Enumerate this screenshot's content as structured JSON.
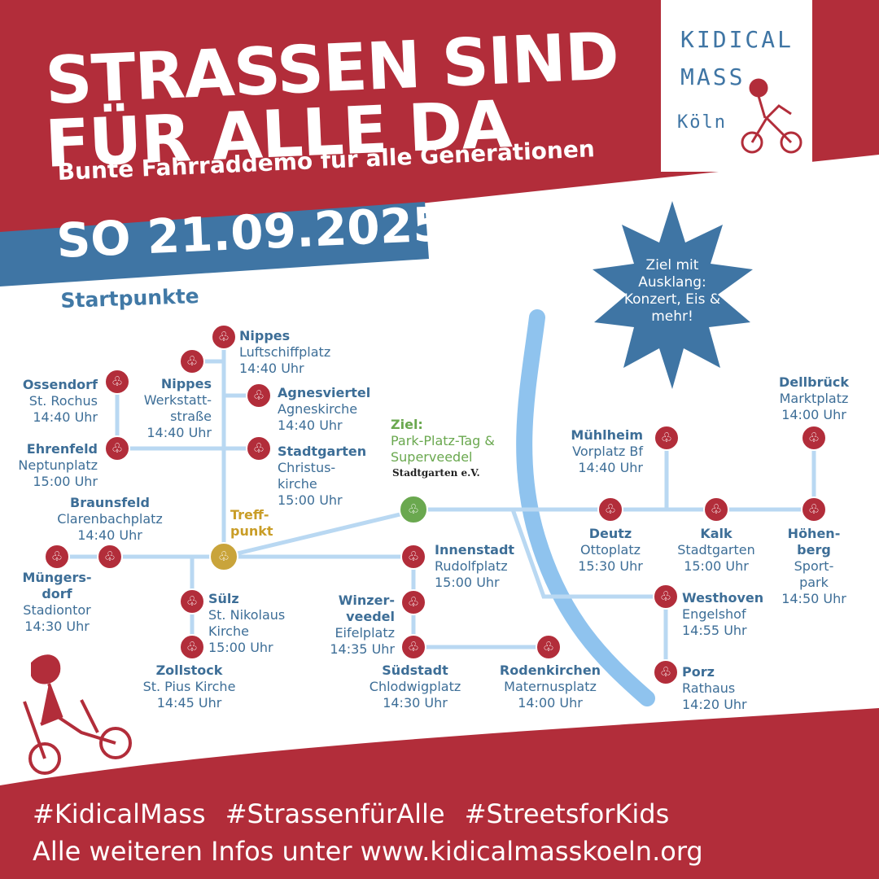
{
  "headline": {
    "line1": "STRASSEN SIND",
    "line2": "FÜR ALLE DA"
  },
  "subtitle": "Bunte Fahrraddemo für alle Generationen",
  "date": "SO 21.09.2025",
  "section_title": "Startpunkte",
  "logo": {
    "line1": "KIDICAL",
    "line2": "MASS",
    "line3": "Köln"
  },
  "burst": "Ziel mit Ausklang: Konzert, Eis & mehr!",
  "treffpunkt": {
    "line1": "Treff-",
    "line2": "punkt"
  },
  "ziel": {
    "name": "Ziel:",
    "line1": "Park-Platz-Tag &",
    "line2": "Superveedel",
    "partner": "Stadtgarten e.V."
  },
  "stations": {
    "nippes_luft": {
      "name": "Nippes",
      "place": "Luftschiffplatz",
      "time": "14:40 Uhr"
    },
    "nippes_werk": {
      "name": "Nippes",
      "place1": "Werkstatt-",
      "place2": "straße",
      "time": "14:40 Uhr"
    },
    "agnesviertel": {
      "name": "Agnesviertel",
      "place": "Agneskirche",
      "time": "14:40 Uhr"
    },
    "ossendorf": {
      "name": "Ossendorf",
      "place": "St. Rochus",
      "time": "14:40 Uhr"
    },
    "ehrenfeld": {
      "name": "Ehrenfeld",
      "place": "Neptunplatz",
      "time": "15:00 Uhr"
    },
    "stadtgarten": {
      "name": "Stadtgarten",
      "place1": "Christus-",
      "place2": "kirche",
      "time": "15:00 Uhr"
    },
    "braunsfeld": {
      "name": "Braunsfeld",
      "place": "Clarenbachplatz",
      "time": "14:40 Uhr"
    },
    "muengersdorf": {
      "name1": "Müngers-",
      "name2": "dorf",
      "place": "Stadiontor",
      "time": "14:30 Uhr"
    },
    "suelz": {
      "name": "Sülz",
      "place1": "St. Nikolaus",
      "place2": "Kirche",
      "time": "15:00 Uhr"
    },
    "zollstock": {
      "name": "Zollstock",
      "place": "St. Pius Kirche",
      "time": "14:45 Uhr"
    },
    "innenstadt": {
      "name": "Innenstadt",
      "place": "Rudolfplatz",
      "time": "15:00 Uhr"
    },
    "winzerveedel": {
      "name1": "Winzer-",
      "name2": "veedel",
      "place": "Eifelplatz",
      "time": "14:35 Uhr"
    },
    "suedstadt": {
      "name": "Südstadt",
      "place": "Chlodwigplatz",
      "time": "14:30 Uhr"
    },
    "rodenkirchen": {
      "name": "Rodenkirchen",
      "place": "Maternusplatz",
      "time": "14:00 Uhr"
    },
    "muehlheim": {
      "name": "Mühlheim",
      "place": "Vorplatz Bf",
      "time": "14:40 Uhr"
    },
    "deutz": {
      "name": "Deutz",
      "place": "Ottoplatz",
      "time": "15:30 Uhr"
    },
    "kalk": {
      "name": "Kalk",
      "place": "Stadtgarten",
      "time": "15:00 Uhr"
    },
    "dellbrueck": {
      "name": "Dellbrück",
      "place": "Marktplatz",
      "time": "14:00 Uhr"
    },
    "hoehenberg": {
      "name1": "Höhen-",
      "name2": "berg",
      "place1": "Sport-",
      "place2": "park",
      "time": "14:50 Uhr"
    },
    "westhoven": {
      "name": "Westhoven",
      "place": "Engelshof",
      "time": "14:55 Uhr"
    },
    "porz": {
      "name": "Porz",
      "place": "Rathaus",
      "time": "14:20 Uhr"
    }
  },
  "hashtags": "#KidicalMass #StrassenfürAlle #StreetsforKids",
  "info": "Alle weiteren Infos unter www.kidicalmasskoeln.org",
  "colors": {
    "red": "#b22d3a",
    "blue": "#3f75a4",
    "route": "#b9d8f2",
    "river": "#8fc3ee",
    "treff": "#c9a43b",
    "ziel": "#6aa84f"
  }
}
